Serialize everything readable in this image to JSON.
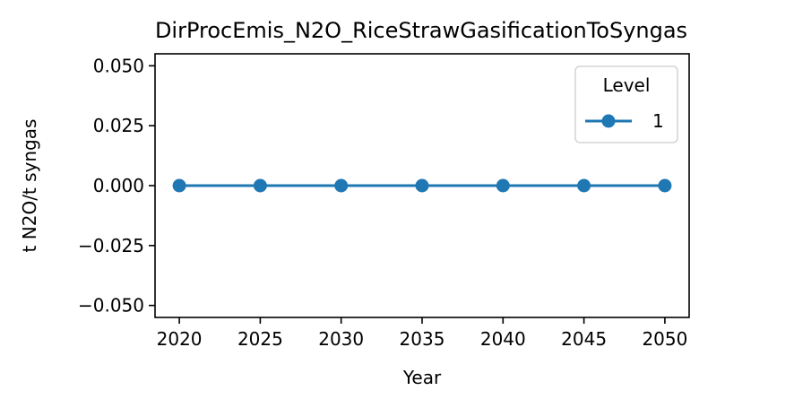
{
  "chart_data": {
    "type": "line",
    "title": "DirProcEmis_N2O_RiceStrawGasificationToSyngas",
    "xlabel": "Year",
    "ylabel": "t N2O/t syngas",
    "x": [
      2020,
      2025,
      2030,
      2035,
      2040,
      2045,
      2050
    ],
    "xticks": [
      "2020",
      "2025",
      "2030",
      "2035",
      "2040",
      "2045",
      "2050"
    ],
    "yticks": [
      "0.050",
      "0.025",
      "0.000",
      "−0.025",
      "−0.050"
    ],
    "ytick_values": [
      0.05,
      0.025,
      0.0,
      -0.025,
      -0.05
    ],
    "xlim": [
      2018.5,
      2051.5
    ],
    "ylim": [
      -0.055,
      0.055
    ],
    "series": [
      {
        "name": "1",
        "values": [
          0,
          0,
          0,
          0,
          0,
          0,
          0
        ],
        "color": "#1f77b4",
        "marker": "circle"
      }
    ],
    "legend": {
      "title": "Level",
      "placement": "top-right"
    },
    "grid": false
  }
}
